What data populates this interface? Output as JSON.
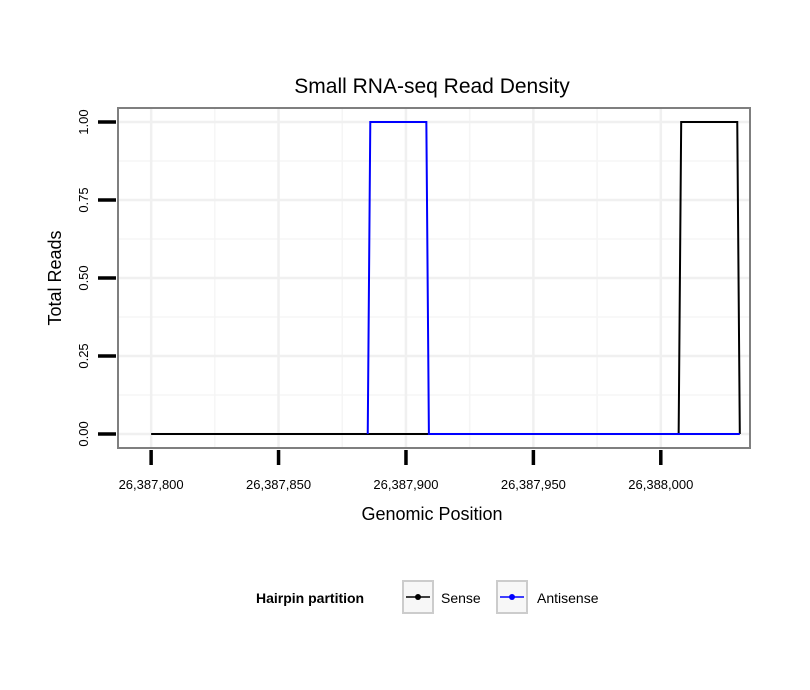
{
  "chart_data": {
    "type": "line",
    "title": "Small RNA-seq Read Density",
    "xlabel": "Genomic Position",
    "ylabel": "Total Reads",
    "xlim": [
      26387787,
      26388035
    ],
    "ylim": [
      -0.045,
      1.045
    ],
    "x_ticks": [
      26387800,
      26387850,
      26387900,
      26387950,
      26388000
    ],
    "x_tick_labels": [
      "26,387,800",
      "26,387,850",
      "26,387,900",
      "26,387,950",
      "26,388,000"
    ],
    "y_ticks": [
      0,
      0.25,
      0.5,
      0.75,
      1
    ],
    "y_tick_labels": [
      "0.00",
      "0.25",
      "0.50",
      "0.75",
      "1.00"
    ],
    "grid": true,
    "legend": {
      "title": "Hairpin partition",
      "position": "bottom",
      "entries": [
        "Sense",
        "Antisense"
      ]
    },
    "series": [
      {
        "name": "Sense",
        "color": "#000000",
        "x": [
          26387800,
          26388007,
          26388008,
          26388030,
          26388031
        ],
        "y": [
          0,
          0,
          1,
          1,
          0
        ]
      },
      {
        "name": "Antisense",
        "color": "#0000ff",
        "x": [
          26387885,
          26387886,
          26387908,
          26387909,
          26388007,
          26388031
        ],
        "y": [
          0,
          1,
          1,
          0,
          0,
          0
        ]
      }
    ]
  }
}
